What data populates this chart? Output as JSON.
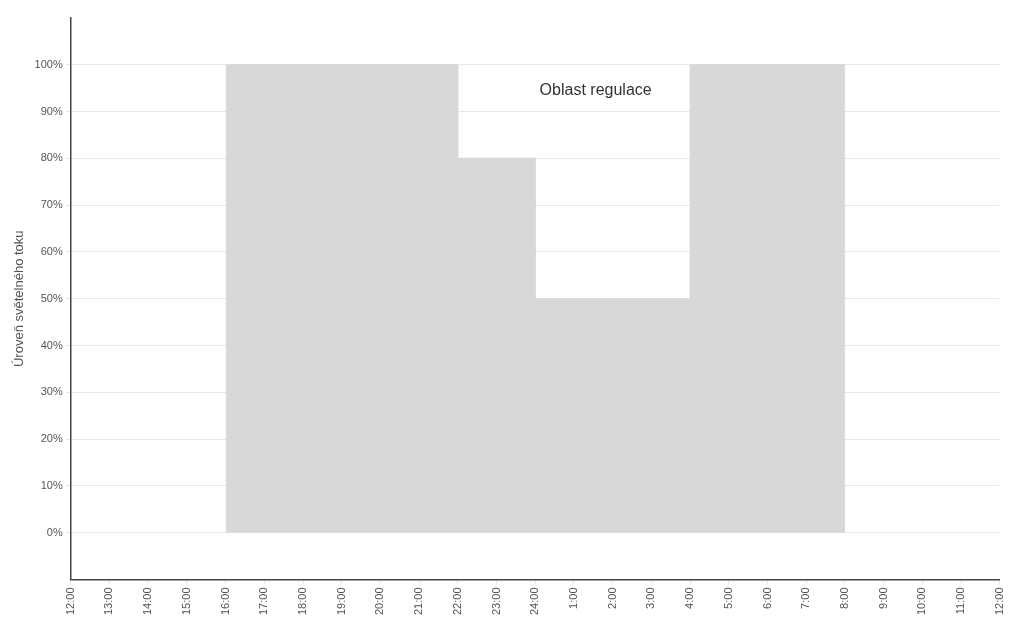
{
  "chart_data": {
    "type": "area",
    "ylabel": "Úroveň světelného toku",
    "series": [
      {
        "color": "#d8d8d8",
        "x": [
          "--01-01T16:00",
          "--01-01T22:00",
          "--01-01T22:00",
          "--01-02T00:00",
          "--01-02T00:00",
          "--01-02T04:00",
          "--01-02T04:00",
          "--01-02T08:00"
        ],
        "values": [
          100,
          100,
          80,
          80,
          50,
          50,
          100,
          100
        ]
      }
    ],
    "xlim": [
      "--01-01T12:00",
      "--01-02T12:00"
    ],
    "xticks": [
      {
        "value": "--01-01T12:00",
        "label": "12:00"
      },
      {
        "value": "--01-01T13:00",
        "label": "13:00"
      },
      {
        "value": "--01-01T14:00",
        "label": "14:00"
      },
      {
        "value": "--01-01T15:00",
        "label": "15:00"
      },
      {
        "value": "--01-01T16:00",
        "label": "16:00"
      },
      {
        "value": "--01-01T17:00",
        "label": "17:00"
      },
      {
        "value": "--01-01T18:00",
        "label": "18:00"
      },
      {
        "value": "--01-01T19:00",
        "label": "19:00"
      },
      {
        "value": "--01-01T20:00",
        "label": "20:00"
      },
      {
        "value": "--01-01T21:00",
        "label": "21:00"
      },
      {
        "value": "--01-01T22:00",
        "label": "22:00"
      },
      {
        "value": "--01-01T23:00",
        "label": "23:00"
      },
      {
        "value": "--01-02T00:00",
        "label": "24:00"
      },
      {
        "value": "--01-02T01:00",
        "label": "1:00"
      },
      {
        "value": "--01-02T02:00",
        "label": "2:00"
      },
      {
        "value": "--01-02T03:00",
        "label": "3:00"
      },
      {
        "value": "--01-02T04:00",
        "label": "4:00"
      },
      {
        "value": "--01-02T05:00",
        "label": "5:00"
      },
      {
        "value": "--01-02T06:00",
        "label": "6:00"
      },
      {
        "value": "--01-02T07:00",
        "label": "7:00"
      },
      {
        "value": "--01-02T08:00",
        "label": "8:00"
      },
      {
        "value": "--01-02T09:00",
        "label": "9:00"
      },
      {
        "value": "--01-02T10:00",
        "label": "10:00"
      },
      {
        "value": "--01-02T11:00",
        "label": "11:00"
      },
      {
        "value": "--01-02T12:00",
        "label": "12:00"
      }
    ],
    "ylim": [
      -10,
      110
    ],
    "yticks": [
      {
        "value": 0,
        "label": "0%"
      },
      {
        "value": 10,
        "label": "10%"
      },
      {
        "value": 20,
        "label": "20%"
      },
      {
        "value": 30,
        "label": "30%"
      },
      {
        "value": 40,
        "label": "40%"
      },
      {
        "value": 50,
        "label": "50%"
      },
      {
        "value": 60,
        "label": "60%"
      },
      {
        "value": 70,
        "label": "70%"
      },
      {
        "value": 80,
        "label": "80%"
      },
      {
        "value": 90,
        "label": "90%"
      },
      {
        "value": 100,
        "label": "100%"
      }
    ],
    "grid": "y",
    "legend": false,
    "annotations": [
      "Oblast regulace"
    ]
  }
}
